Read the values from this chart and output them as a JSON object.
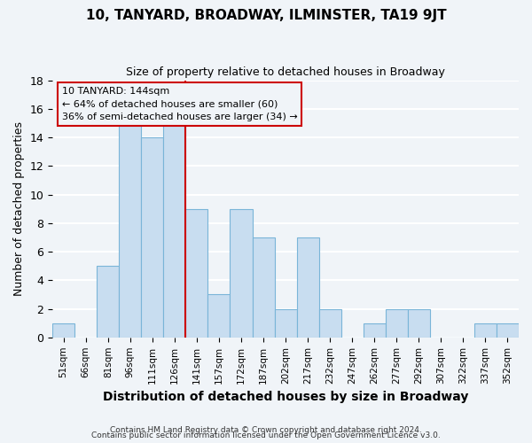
{
  "title": "10, TANYARD, BROADWAY, ILMINSTER, TA19 9JT",
  "subtitle": "Size of property relative to detached houses in Broadway",
  "xlabel": "Distribution of detached houses by size in Broadway",
  "ylabel": "Number of detached properties",
  "bar_color": "#c8ddf0",
  "bar_edge_color": "#7ab5d8",
  "bins": [
    "51sqm",
    "66sqm",
    "81sqm",
    "96sqm",
    "111sqm",
    "126sqm",
    "141sqm",
    "157sqm",
    "172sqm",
    "187sqm",
    "202sqm",
    "217sqm",
    "232sqm",
    "247sqm",
    "262sqm",
    "277sqm",
    "292sqm",
    "307sqm",
    "322sqm",
    "337sqm",
    "352sqm"
  ],
  "values": [
    1,
    0,
    5,
    15,
    14,
    15,
    9,
    3,
    9,
    7,
    2,
    7,
    2,
    0,
    1,
    2,
    2,
    0,
    0,
    1,
    1
  ],
  "subject_label": "10 TANYARD: 144sqm",
  "annotation_line1": "← 64% of detached houses are smaller (60)",
  "annotation_line2": "36% of semi-detached houses are larger (34) →",
  "vline_color": "#cc0000",
  "box_edge_color": "#cc0000",
  "ylim": [
    0,
    18
  ],
  "yticks": [
    0,
    2,
    4,
    6,
    8,
    10,
    12,
    14,
    16,
    18
  ],
  "footer1": "Contains HM Land Registry data © Crown copyright and database right 2024.",
  "footer2": "Contains public sector information licensed under the Open Government Licence v3.0.",
  "background_color": "#f0f4f8",
  "grid_color": "#ffffff",
  "vline_position": 6.5
}
